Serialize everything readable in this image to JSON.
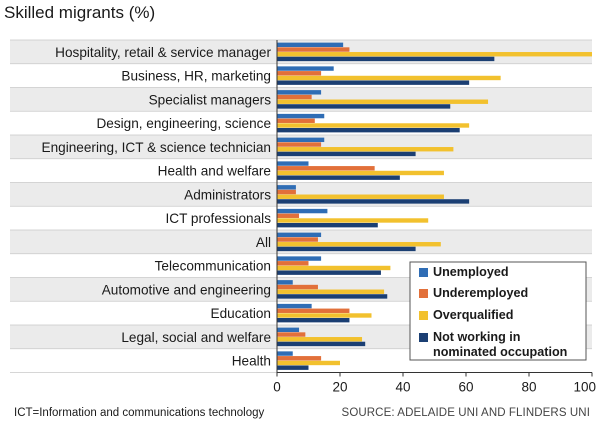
{
  "chart_data": {
    "type": "bar",
    "orientation": "horizontal",
    "title": "Skilled migrants (%)",
    "categories": [
      "Hospitality, retail & service manager",
      "Business, HR, marketing",
      "Specialist managers",
      "Design, engineering, science",
      "Engineering, ICT & science technician",
      "Health and welfare",
      "Administrators",
      "ICT professionals",
      "All",
      "Telecommunication",
      "Automotive and engineering",
      "Education",
      "Legal, social and welfare",
      "Health"
    ],
    "series": [
      {
        "name": "Unemployed",
        "color": "#2f6db5",
        "values": [
          21,
          18,
          14,
          15,
          15,
          10,
          6,
          16,
          14,
          14,
          5,
          11,
          7,
          5
        ]
      },
      {
        "name": "Underemployed",
        "color": "#e2703a",
        "values": [
          23,
          14,
          11,
          12,
          14,
          31,
          6,
          7,
          13,
          10,
          13,
          23,
          9,
          14
        ]
      },
      {
        "name": "Overqualified",
        "color": "#f2c12e",
        "values": [
          100,
          71,
          67,
          61,
          56,
          53,
          53,
          48,
          52,
          36,
          34,
          30,
          27,
          20
        ]
      },
      {
        "name": "Not working in nominated occupation",
        "color": "#1b3f73",
        "values": [
          69,
          61,
          55,
          58,
          44,
          39,
          61,
          32,
          44,
          33,
          35,
          23,
          28,
          10
        ]
      }
    ],
    "xlim": [
      0,
      100
    ],
    "xticks": [
      0,
      20,
      40,
      60,
      80,
      100
    ],
    "legend_position": "bottom-right",
    "row_shading": "alternating"
  },
  "footnote": "ICT=Information and communications technology",
  "source": "SOURCE: ADELAIDE UNI AND FLINDERS UNI"
}
